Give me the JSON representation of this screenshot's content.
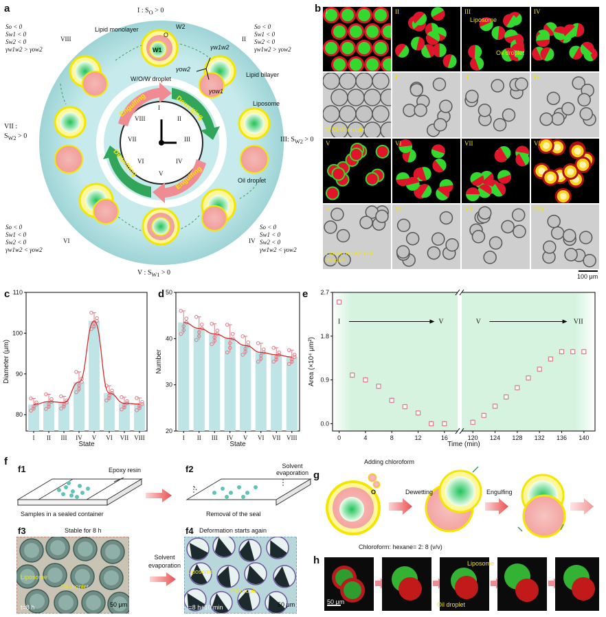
{
  "panels": {
    "a": "a",
    "b": "b",
    "c": "c",
    "d": "d",
    "e": "e",
    "f": "f",
    "g": "g",
    "h": "h"
  },
  "panel_a": {
    "states": {
      "I": "I : S",
      "I_sub": "O",
      "I_tail": " > 0",
      "III": "III: S",
      "III_sub": "W2",
      "III_tail": " > 0",
      "V": "V : S",
      "V_sub": "W1",
      "V_tail": " > 0",
      "VII_a": "VII :",
      "VII_b": "S",
      "VII_sub": "W2",
      "VII_tail": " > 0"
    },
    "conditions": {
      "II_label": "II",
      "IV_label": "IV",
      "VI_label": "VI",
      "VIII_label": "VIII",
      "lines_II": [
        "So < 0",
        "Sw1 < 0",
        "Sw2 < 0",
        "γw1w2 > γow2"
      ],
      "lines_IV": [
        "So < 0",
        "Sw1 < 0",
        "Sw2 < 0",
        "γw1w2 < γow2"
      ],
      "lines_VI": [
        "So < 0",
        "Sw1 < 0",
        "Sw2 < 0",
        "γw1w2 < γow2"
      ],
      "lines_VIII": [
        "So < 0",
        "Sw1 < 0",
        "Sw2 < 0",
        "γw1w2 > γow2"
      ]
    },
    "labels": {
      "lipid_monolayer": "Lipid monolayer",
      "o": "O",
      "w2": "W2",
      "w1": "W1",
      "gamma_w1w2": "γw1w2",
      "gamma_ow2": "γow2",
      "gamma_ow1": "γow1",
      "lipid_bilayer": "Lipid bilayer",
      "wow_droplet": "W/O/W droplet",
      "liposome": "Liposome",
      "oil_droplet": "Oil droplet",
      "engulfing_top": "Engulfing",
      "dewetting_top": "Dewetting",
      "engulfing_bottom": "Engulfing",
      "dewetting_bottom": "Dewetting"
    },
    "clock_numerals": [
      "I",
      "II",
      "III",
      "IV",
      "V",
      "VI",
      "VII",
      "VIII"
    ]
  },
  "panel_b": {
    "tiles": [
      "I",
      "II",
      "III",
      "IV",
      "V",
      "VI",
      "VII",
      "VIII"
    ],
    "bright_labels": [
      "I'",
      "II'",
      "III'",
      "IV'",
      "V'",
      "VI'",
      "VII'",
      "VIII'"
    ],
    "liposome": "Liposome",
    "oil_droplet": "Oil droplet",
    "wow_droplet": "W/O/W droplet",
    "liposome_with_oil": "Liposome with oil",
    "liposome_with_oil_2": "droplet",
    "scale": "100 μm"
  },
  "chart_data": [
    {
      "type": "bar",
      "panel": "c",
      "categories": [
        "I",
        "II",
        "III",
        "IV",
        "V",
        "VI",
        "VII",
        "VIII"
      ],
      "values": [
        82.5,
        83.2,
        83.0,
        88.0,
        103.0,
        85.3,
        82.8,
        82.6
      ],
      "errors": [
        1.5,
        1.8,
        1.5,
        2.5,
        2.0,
        1.8,
        1.5,
        1.5
      ],
      "trend": [
        82.5,
        83.2,
        83.0,
        88.0,
        103.0,
        85.3,
        82.8,
        82.6
      ],
      "xlabel": "State",
      "ylabel": "Diameter (μm)",
      "ylim": [
        76,
        110
      ],
      "yticks": [
        80,
        90,
        100,
        110
      ],
      "colors": {
        "bar": "#bfe4e6",
        "trend": "#d62828",
        "point": "#e07a85"
      }
    },
    {
      "type": "bar",
      "panel": "d",
      "categories": [
        "I",
        "II",
        "III",
        "IV",
        "V",
        "VI",
        "VII",
        "VIII"
      ],
      "values": [
        43.5,
        42.2,
        41.0,
        40.0,
        38.5,
        37.0,
        36.5,
        36.0
      ],
      "errors": [
        2.5,
        2.5,
        2.2,
        3.0,
        2.0,
        2.0,
        1.5,
        1.5
      ],
      "trend": [
        43.5,
        42.2,
        41.0,
        40.0,
        38.5,
        37.0,
        36.5,
        36.0
      ],
      "xlabel": "State",
      "ylabel": "Number",
      "ylim": [
        20,
        50
      ],
      "yticks": [
        20,
        30,
        40,
        50
      ],
      "colors": {
        "bar": "#bfe4e6",
        "trend": "#d62828",
        "point": "#e07a85"
      }
    },
    {
      "type": "scatter",
      "panel": "e",
      "segments": [
        {
          "x": [
            0,
            2,
            4,
            6,
            8,
            10,
            12,
            14,
            16
          ],
          "y": [
            2.5,
            1.0,
            0.9,
            0.77,
            0.48,
            0.35,
            0.22,
            0.0,
            0.0
          ],
          "arrow_from": "I",
          "arrow_to": "V"
        },
        {
          "x": [
            120,
            122,
            124,
            126,
            128,
            130,
            132,
            134,
            136,
            138,
            140
          ],
          "y": [
            0.03,
            0.17,
            0.36,
            0.55,
            0.74,
            0.94,
            1.12,
            1.33,
            1.48,
            1.48,
            1.48
          ],
          "arrow_from": "V",
          "arrow_to": "VII"
        }
      ],
      "xticks_left": [
        "0",
        "4",
        "8",
        "12",
        "16"
      ],
      "xticks_right": [
        "120",
        "124",
        "128",
        "132",
        "136",
        "140"
      ],
      "yticks": [
        "0.0",
        "0.9",
        "1.8",
        "2.7"
      ],
      "xlabel": "Time (min)",
      "ylabel": "Area (×10⁴ μm²)",
      "ylim": [
        -0.15,
        2.7
      ],
      "arrow_labels": {
        "I": "I",
        "V_left": "V",
        "V_right": "V",
        "VII": "VII"
      },
      "colors": {
        "point": "#e07a85",
        "bg": "#d5f3df"
      }
    }
  ],
  "panel_f": {
    "f1": "f1",
    "f2": "f2",
    "f3": "f3",
    "f4": "f4",
    "epoxy_resin": "Epoxy resin",
    "solvent_evap_1": "Solvent",
    "solvent_evap_2": "evaporation",
    "samples": "Samples in a sealed container",
    "removal": "Removal of the seal",
    "stable": "Stable for 8 h",
    "solvent_mid_1": "Solvent",
    "solvent_mid_2": "evaporation",
    "deformation": "Deformation starts again",
    "liposome_f3": "Liposome",
    "oil_f3": "Oil droplet",
    "liposome_f4": "Liposome",
    "oil_f4": "Oil droplet",
    "time_f3": "t=8 h",
    "time_f4": "t=8 h+10 min",
    "scale_f3": "50 μm",
    "scale_f4": "50 μm"
  },
  "panel_g": {
    "adding": "Adding chloroform",
    "o": "O",
    "dewetting": "Dewetting",
    "engulfing": "Engulfing",
    "ratio": "Chloroform: hexane= 2: 8 (v/v)"
  },
  "panel_h": {
    "liposome": "Liposome",
    "oil_droplet": "Oil droplet",
    "scale": "50 μm"
  }
}
